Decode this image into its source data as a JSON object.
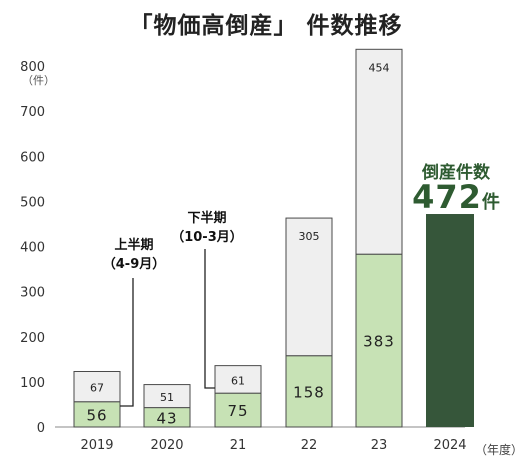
{
  "chart_data": {
    "type": "bar",
    "title": "「物価高倒産」 件数推移",
    "y_unit": "（件）",
    "x_unit": "（年度）",
    "categories": [
      "2019",
      "2020",
      "21",
      "22",
      "23",
      "2024"
    ],
    "ylim": [
      0,
      800
    ],
    "yticks": [
      0,
      100,
      200,
      300,
      400,
      500,
      600,
      700,
      800
    ],
    "series": [
      {
        "name": "上半期（4-9月）",
        "values": [
          56,
          43,
          75,
          158,
          383,
          472
        ]
      },
      {
        "name": "下半期（10-3月）",
        "values": [
          67,
          51,
          61,
          305,
          454,
          null
        ]
      }
    ],
    "annotations": {
      "first_half_line1": "上半期",
      "first_half_line2": "（4-9月）",
      "second_half_line1": "下半期",
      "second_half_line2": "（10-3月）"
    },
    "callout": {
      "label": "倒産件数",
      "value": "472",
      "unit": "件"
    },
    "colors": {
      "first_half": "#c7e2b5",
      "second_half": "#efefef",
      "highlight": "#36563a",
      "border": "#4a4a4a",
      "text": "#333333"
    }
  }
}
